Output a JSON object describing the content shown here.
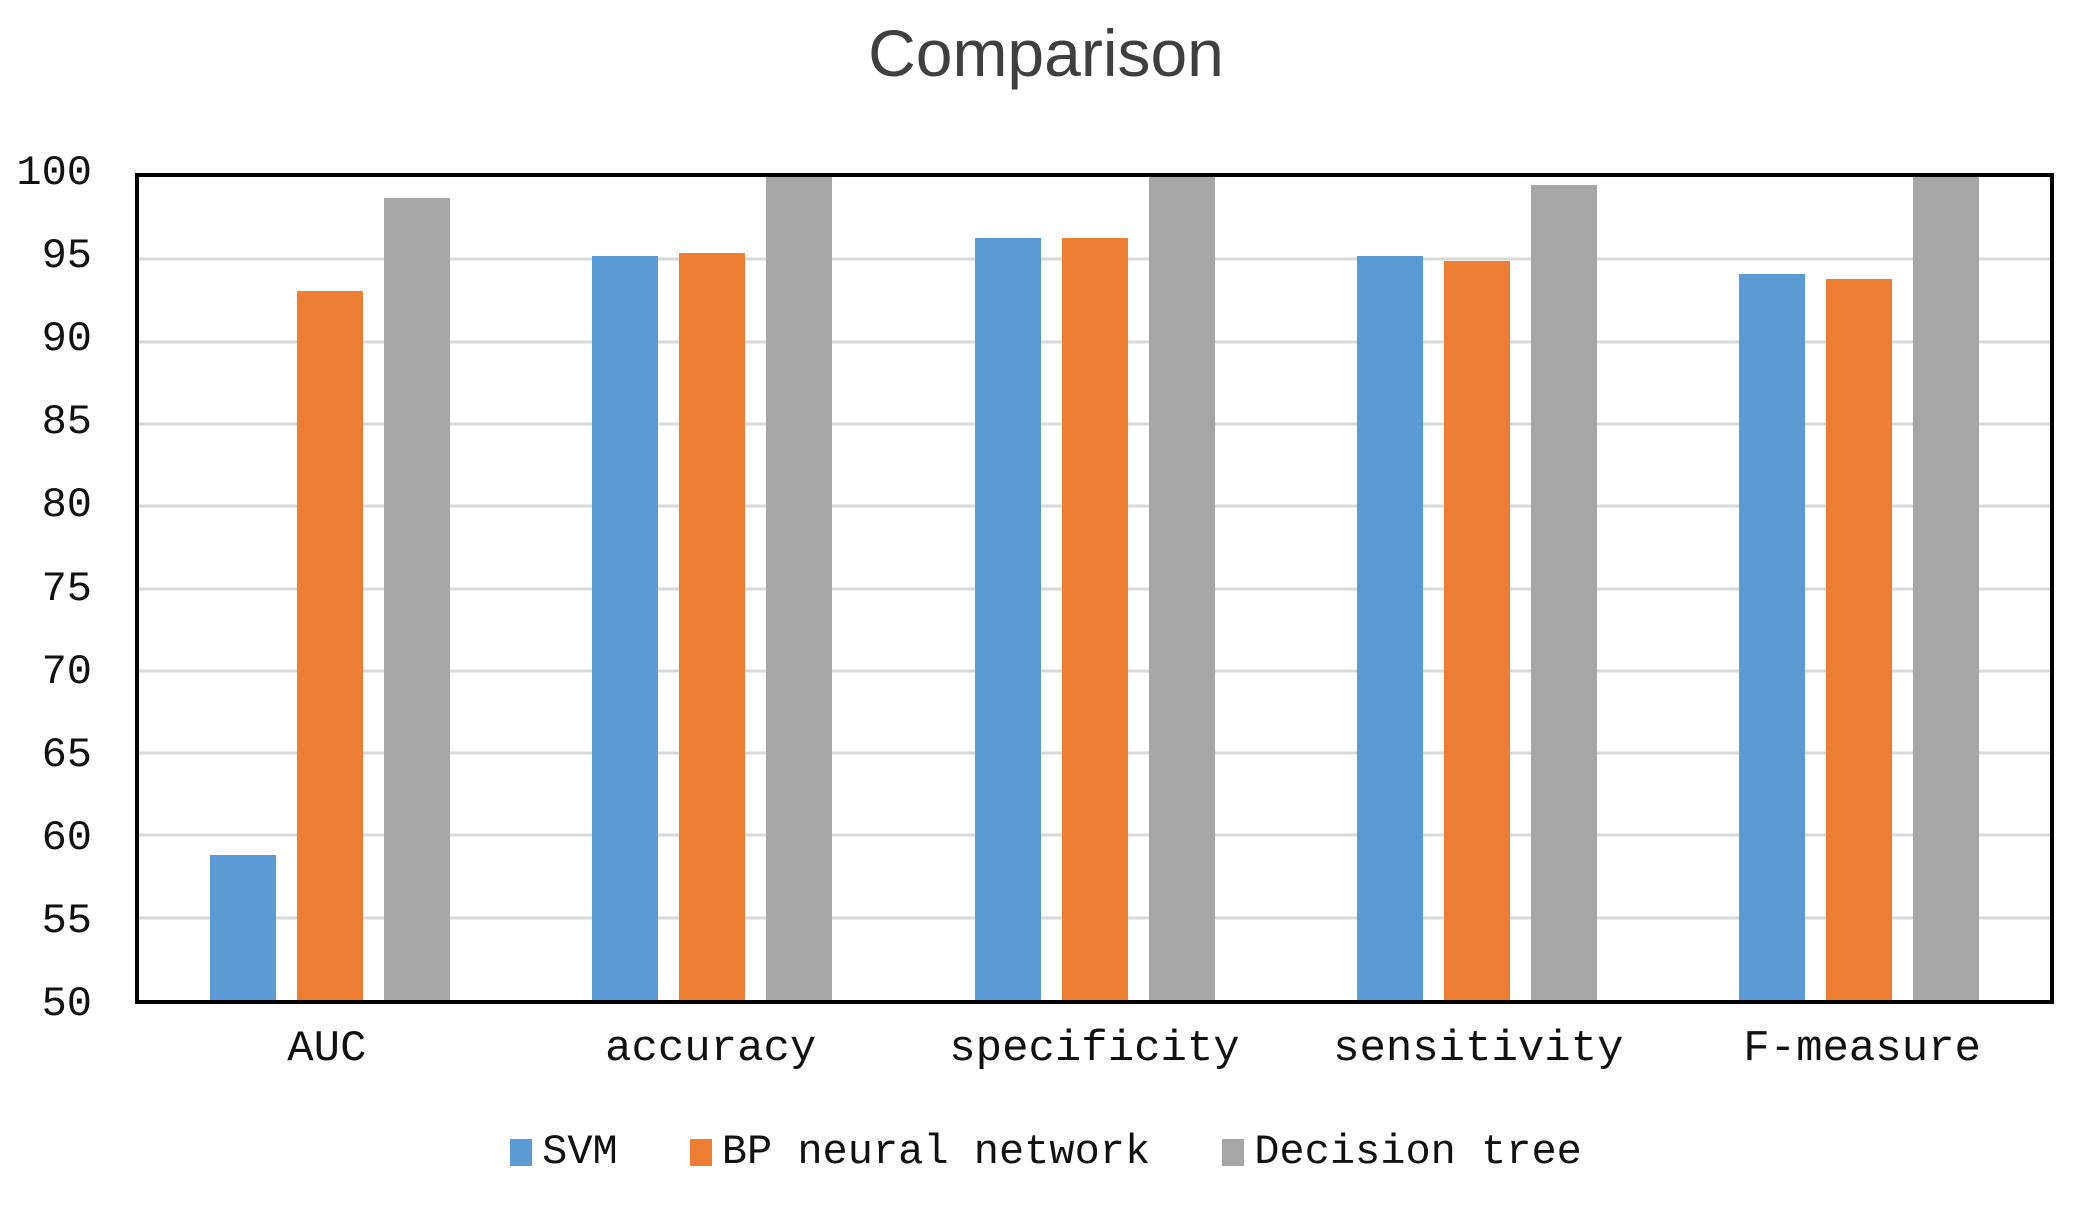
{
  "title": "Comparison",
  "chart_data": {
    "type": "bar",
    "title": "Comparison",
    "categories": [
      "AUC",
      "accuracy",
      "specificity",
      "sensitivity",
      "F-measure"
    ],
    "series": [
      {
        "name": "SVM",
        "color": "#5B9BD5",
        "values": [
          58.8,
          95.2,
          96.3,
          95.2,
          94.1
        ]
      },
      {
        "name": "BP neural network",
        "color": "#ED7D31",
        "values": [
          93.1,
          95.4,
          96.3,
          94.9,
          93.8
        ]
      },
      {
        "name": "Decision tree",
        "color": "#A6A6A6",
        "values": [
          98.7,
          100.0,
          100.0,
          99.5,
          100.0
        ]
      }
    ],
    "xlabel": "",
    "ylabel": "",
    "ylim": [
      50,
      100
    ],
    "yticks": [
      50,
      55,
      60,
      65,
      70,
      75,
      80,
      85,
      90,
      95,
      100
    ],
    "grid": true,
    "gridline_color": "#D9D9D9",
    "axis_border_color": "#000000",
    "title_color": "#3f3f3f",
    "tick_label_color": "#111111",
    "legend_position": "bottom"
  }
}
